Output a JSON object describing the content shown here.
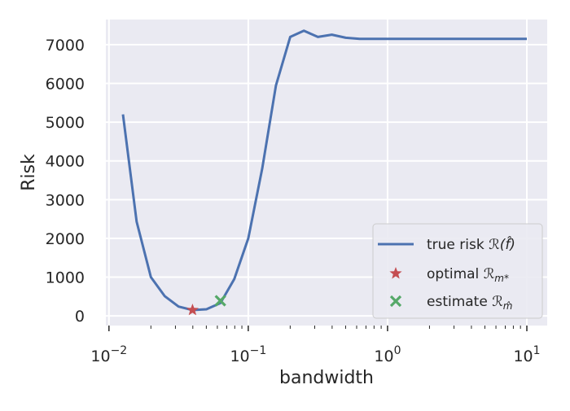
{
  "chart_data": {
    "type": "line",
    "xlabel": "bandwidth",
    "ylabel": "Risk",
    "xscale": "log",
    "xlim": [
      0.0095,
      14
    ],
    "ylim": [
      -250,
      7650
    ],
    "grid": true,
    "legend_position": "lower right",
    "x_ticks": [
      {
        "value": 0.01,
        "mantissa": "10",
        "exponent": "−2"
      },
      {
        "value": 0.1,
        "mantissa": "10",
        "exponent": "−1"
      },
      {
        "value": 1,
        "mantissa": "10",
        "exponent": "0"
      },
      {
        "value": 10,
        "mantissa": "10",
        "exponent": "1"
      }
    ],
    "y_ticks": [
      0,
      1000,
      2000,
      3000,
      4000,
      5000,
      6000,
      7000
    ],
    "y_tick_labels": [
      "0",
      "1000",
      "2000",
      "3000",
      "4000",
      "5000",
      "6000",
      "7000"
    ],
    "colors": {
      "background": "#eaeaf2",
      "grid": "#ffffff",
      "line": "#4c72b0",
      "optimal": "#c44e52",
      "estimate": "#55a868"
    },
    "series": [
      {
        "name": "true risk",
        "kind": "line",
        "x": [
          0.0126,
          0.0158,
          0.02,
          0.0251,
          0.0316,
          0.0398,
          0.0501,
          0.0631,
          0.0794,
          0.1,
          0.126,
          0.158,
          0.2,
          0.251,
          0.316,
          0.398,
          0.501,
          0.631,
          0.794,
          1.0,
          10.0
        ],
        "y": [
          5200,
          2430,
          1000,
          510,
          240,
          150,
          170,
          330,
          950,
          2000,
          3800,
          5950,
          7200,
          7360,
          7200,
          7260,
          7180,
          7150,
          7150,
          7150,
          7150
        ]
      },
      {
        "name": "optimal",
        "kind": "marker",
        "marker": "star",
        "x": [
          0.0398
        ],
        "y": [
          150
        ]
      },
      {
        "name": "estimate",
        "kind": "marker",
        "marker": "x",
        "x": [
          0.0631
        ],
        "y": [
          390
        ]
      }
    ],
    "legend": [
      {
        "text": "true risk",
        "math": "ℛ(f̂)",
        "marker": "line"
      },
      {
        "text": "optimal",
        "math": "ℛ",
        "sub": "m*",
        "marker": "star"
      },
      {
        "text": "estimate",
        "math": "ℛ",
        "sub": "m̂",
        "marker": "x"
      }
    ]
  }
}
